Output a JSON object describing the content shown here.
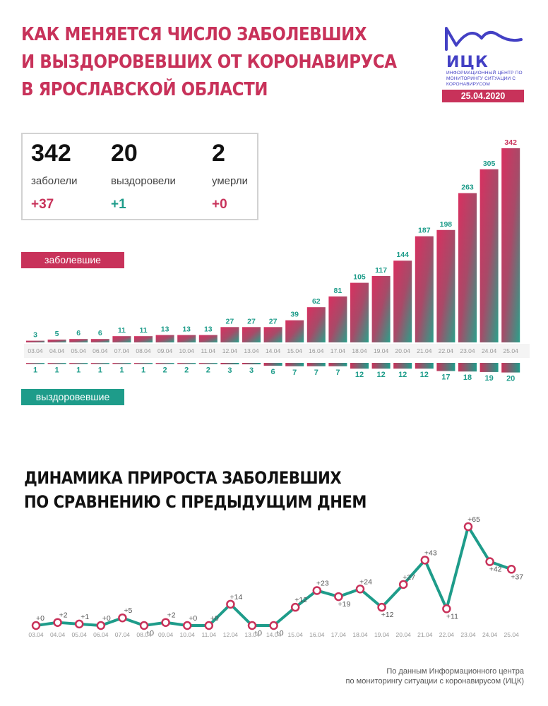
{
  "header": {
    "title_lines": [
      "КАК МЕНЯЕТСЯ ЧИСЛО ЗАБОЛЕВШИХ",
      "И ВЫЗДОРОВЕВШИХ ОТ КОРОНАВИРУСА",
      "В ЯРОСЛАВСКОЙ ОБЛАСТИ"
    ]
  },
  "logo": {
    "abbr": "ИЦК",
    "text": "Информационный центр по мониторингу ситуации с коронавирусом",
    "date": "25.04.2020"
  },
  "stats": [
    {
      "value": "342",
      "label": "заболели",
      "delta": "+37"
    },
    {
      "value": "20",
      "label": "выздоровели",
      "delta": "+1"
    },
    {
      "value": "2",
      "label": "умерли",
      "delta": "+0"
    }
  ],
  "legend": {
    "infected": "заболевшие",
    "recovered": "выздоровевшие"
  },
  "subtitle_lines": [
    "ДИНАМИКА ПРИРОСТА ЗАБОЛЕВШИХ",
    "ПО СРАВНЕНИЮ С ПРЕДЫДУЩИМ ДНЕМ"
  ],
  "source_lines": [
    "По данным Информационного центра",
    "по мониторингу ситуации с коронавирусом (ИЦК)"
  ],
  "colors": {
    "infected": "#c8325a",
    "recovered": "#1e9c8a",
    "brand": "#4340c4",
    "tick": "#999999"
  },
  "chart_data": [
    {
      "type": "bar",
      "categories": [
        "03.04",
        "04.04",
        "05.04",
        "06.04",
        "07.04",
        "08.04",
        "09.04",
        "10.04",
        "11.04",
        "12.04",
        "13.04",
        "14.04",
        "15.04",
        "16.04",
        "17.04",
        "18.04",
        "19.04",
        "20.04",
        "21.04",
        "22.04",
        "23.04",
        "24.04",
        "25.04"
      ],
      "series": [
        {
          "name": "заболевшие",
          "values": [
            3,
            5,
            6,
            6,
            11,
            11,
            13,
            13,
            13,
            27,
            27,
            27,
            39,
            62,
            81,
            105,
            117,
            144,
            187,
            198,
            263,
            305,
            342
          ]
        },
        {
          "name": "выздоровевшие",
          "values": [
            1,
            1,
            1,
            1,
            1,
            1,
            2,
            2,
            2,
            3,
            3,
            6,
            7,
            7,
            7,
            12,
            12,
            12,
            12,
            17,
            18,
            19,
            20
          ]
        }
      ]
    },
    {
      "type": "line",
      "categories": [
        "03.04",
        "04.04",
        "05.04",
        "06.04",
        "07.04",
        "08.04",
        "09.04",
        "10.04",
        "11.04",
        "12.04",
        "13.04",
        "14.04",
        "15.04",
        "16.04",
        "17.04",
        "18.04",
        "19.04",
        "20.04",
        "21.04",
        "22.04",
        "23.04",
        "24.04",
        "25.04"
      ],
      "values": [
        0,
        2,
        1,
        0,
        5,
        0,
        2,
        0,
        0,
        14,
        0,
        0,
        12,
        23,
        19,
        24,
        12,
        27,
        43,
        11,
        65,
        42,
        37
      ],
      "labels": [
        "+0",
        "+2",
        "+1",
        "+0",
        "+5",
        "+0",
        "+2",
        "+0",
        "+0",
        "+14",
        "+0",
        "+0",
        "+12",
        "+23",
        "+19",
        "+24",
        "+12",
        "+27",
        "+43",
        "+11",
        "+65",
        "+42",
        "+37"
      ]
    }
  ]
}
